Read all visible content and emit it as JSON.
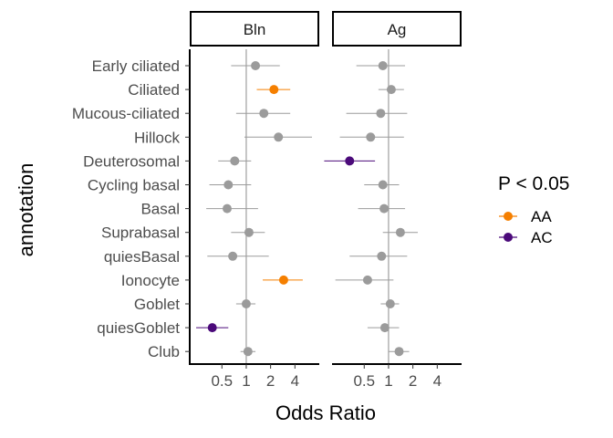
{
  "chart_data": {
    "type": "scatter",
    "subtype": "forest-plot",
    "x_scale": "log2",
    "xlabel": "Odds Ratio",
    "ylabel": "annotation",
    "x_ticks": [
      0.5,
      1,
      2,
      4
    ],
    "x_tick_labels": [
      "0.5",
      "1",
      "2",
      "4"
    ],
    "xlim": [
      0.2,
      8
    ],
    "reference_line": 1,
    "grid": false,
    "legend": {
      "title": "P < 0.05",
      "placement": "right",
      "entries": [
        {
          "label": "AA",
          "color": "#F57F00"
        },
        {
          "label": "AC",
          "color": "#4B0A7A"
        }
      ]
    },
    "default_color": "#9B9B9B",
    "categories": [
      "Early ciliated",
      "Ciliated",
      "Mucous-ciliated",
      "Hillock",
      "Deuterosomal",
      "Cycling basal",
      "Basal",
      "Suprabasal",
      "quiesBasal",
      "Ionocyte",
      "Goblet",
      "quiesGoblet",
      "Club"
    ],
    "panels": [
      {
        "title": "Bln",
        "points": [
          {
            "category": "Early ciliated",
            "or": 1.3,
            "lo": 0.65,
            "hi": 2.6,
            "sig": null
          },
          {
            "category": "Ciliated",
            "or": 2.2,
            "lo": 1.35,
            "hi": 3.5,
            "sig": "AA"
          },
          {
            "category": "Mucous-ciliated",
            "or": 1.65,
            "lo": 0.75,
            "hi": 3.5,
            "sig": null
          },
          {
            "category": "Hillock",
            "or": 2.5,
            "lo": 0.95,
            "hi": 6.5,
            "sig": null
          },
          {
            "category": "Deuterosomal",
            "or": 0.72,
            "lo": 0.45,
            "hi": 1.15,
            "sig": null
          },
          {
            "category": "Cycling basal",
            "or": 0.6,
            "lo": 0.35,
            "hi": 1.15,
            "sig": null
          },
          {
            "category": "Basal",
            "or": 0.58,
            "lo": 0.32,
            "hi": 1.4,
            "sig": null
          },
          {
            "category": "Suprabasal",
            "or": 1.08,
            "lo": 0.65,
            "hi": 1.7,
            "sig": null
          },
          {
            "category": "quiesBasal",
            "or": 0.68,
            "lo": 0.33,
            "hi": 1.9,
            "sig": null
          },
          {
            "category": "Ionocyte",
            "or": 2.9,
            "lo": 1.6,
            "hi": 5.0,
            "sig": "AA"
          },
          {
            "category": "Goblet",
            "or": 1.0,
            "lo": 0.75,
            "hi": 1.3,
            "sig": null
          },
          {
            "category": "quiesGoblet",
            "or": 0.38,
            "lo": 0.24,
            "hi": 0.6,
            "sig": "AC"
          },
          {
            "category": "Club",
            "or": 1.05,
            "lo": 0.85,
            "hi": 1.3,
            "sig": null
          }
        ]
      },
      {
        "title": "Ag",
        "points": [
          {
            "category": "Early ciliated",
            "or": 0.85,
            "lo": 0.4,
            "hi": 1.6,
            "sig": null
          },
          {
            "category": "Ciliated",
            "or": 1.08,
            "lo": 0.75,
            "hi": 1.55,
            "sig": null
          },
          {
            "category": "Mucous-ciliated",
            "or": 0.8,
            "lo": 0.3,
            "hi": 1.7,
            "sig": null
          },
          {
            "category": "Hillock",
            "or": 0.6,
            "lo": 0.25,
            "hi": 1.55,
            "sig": null
          },
          {
            "category": "Deuterosomal",
            "or": 0.33,
            "lo": 0.16,
            "hi": 0.68,
            "sig": "AC"
          },
          {
            "category": "Cycling basal",
            "or": 0.85,
            "lo": 0.5,
            "hi": 1.35,
            "sig": null
          },
          {
            "category": "Basal",
            "or": 0.88,
            "lo": 0.42,
            "hi": 1.6,
            "sig": null
          },
          {
            "category": "Suprabasal",
            "or": 1.4,
            "lo": 0.85,
            "hi": 2.3,
            "sig": null
          },
          {
            "category": "quiesBasal",
            "or": 0.82,
            "lo": 0.33,
            "hi": 1.7,
            "sig": null
          },
          {
            "category": "Ionocyte",
            "or": 0.55,
            "lo": 0.22,
            "hi": 1.15,
            "sig": null
          },
          {
            "category": "Goblet",
            "or": 1.05,
            "lo": 0.8,
            "hi": 1.35,
            "sig": null
          },
          {
            "category": "quiesGoblet",
            "or": 0.9,
            "lo": 0.55,
            "hi": 1.35,
            "sig": null
          },
          {
            "category": "Club",
            "or": 1.35,
            "lo": 1.0,
            "hi": 1.8,
            "sig": null
          }
        ]
      }
    ]
  }
}
